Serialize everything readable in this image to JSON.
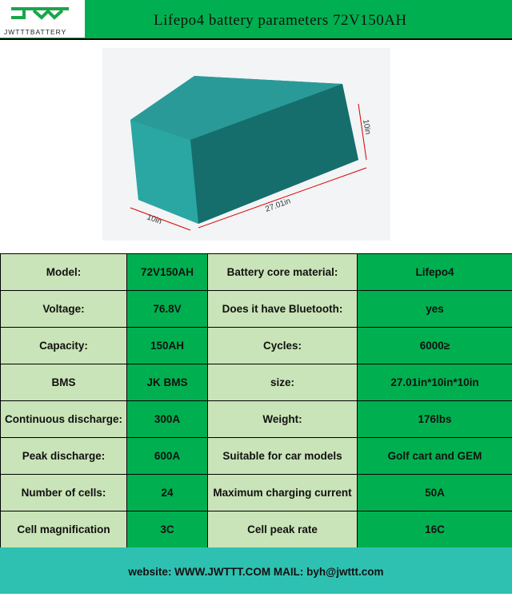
{
  "header": {
    "logo_text": "JWTTTBATTERY",
    "title": "Lifepo4 battery parameters 72V150AH"
  },
  "image": {
    "dim_width": "10in",
    "dim_length": "27.01in",
    "dim_height": "10in"
  },
  "rows": [
    {
      "k1": "Model:",
      "v1": "72V150AH",
      "k2": "Battery core material:",
      "v2": "Lifepo4"
    },
    {
      "k1": "Voltage:",
      "v1": "76.8V",
      "k2": "Does it have Bluetooth:",
      "v2": "yes"
    },
    {
      "k1": "Capacity:",
      "v1": "150AH",
      "k2": "Cycles:",
      "v2": "6000≥"
    },
    {
      "k1": "BMS",
      "v1": "JK BMS",
      "k2": "size:",
      "v2": "27.01in*10in*10in"
    },
    {
      "k1": "Continuous discharge:",
      "v1": "300A",
      "k2": "Weight:",
      "v2": "176lbs"
    },
    {
      "k1": "Peak discharge:",
      "v1": "600A",
      "k2": "Suitable for car models",
      "v2": "Golf cart and GEM"
    },
    {
      "k1": "Number of cells:",
      "v1": "24",
      "k2": "Maximum charging current",
      "v2": "50A"
    },
    {
      "k1": "Cell magnification",
      "v1": "3C",
      "k2": "Cell peak rate",
      "v2": "16C"
    }
  ],
  "footer": {
    "text": "website:  WWW.JWTTT.COM    MAIL:  byh@jwttt.com"
  }
}
